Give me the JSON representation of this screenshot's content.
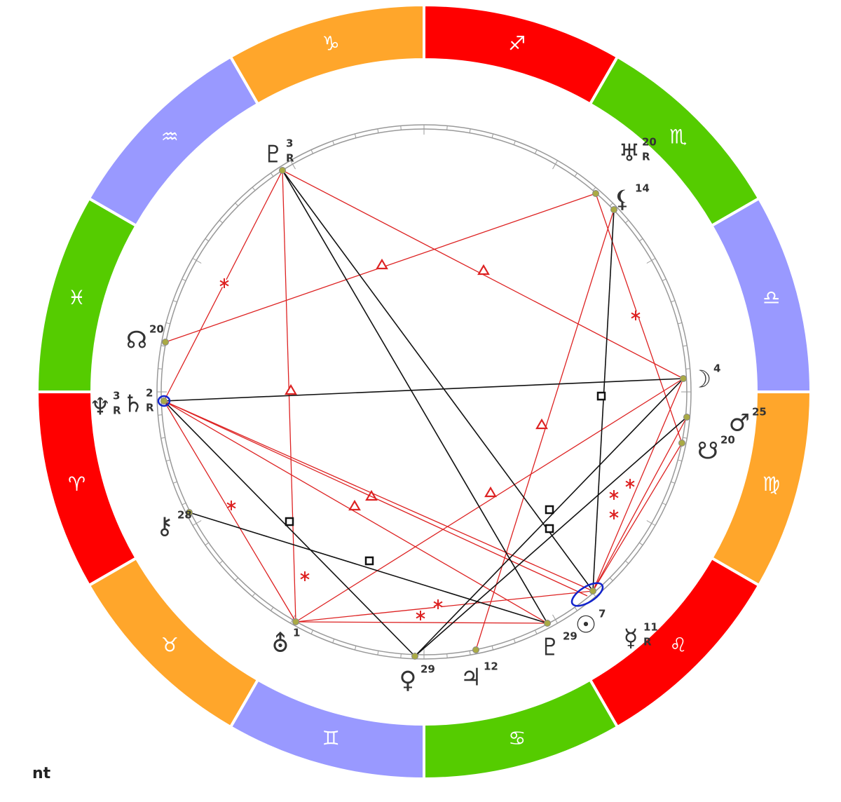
{
  "title": "nt",
  "zodiac": [
    {
      "symbol": "♐",
      "color": "#ff0000"
    },
    {
      "symbol": "♏",
      "color": "#55cc00"
    },
    {
      "symbol": "♎",
      "color": "#9999ff"
    },
    {
      "symbol": "♍",
      "color": "#ffa62b"
    },
    {
      "symbol": "♌",
      "color": "#ff0000"
    },
    {
      "symbol": "♋",
      "color": "#55cc00"
    },
    {
      "symbol": "♊",
      "color": "#9999ff"
    },
    {
      "symbol": "♉",
      "color": "#ffa62b"
    },
    {
      "symbol": "♈",
      "color": "#ff0000"
    },
    {
      "symbol": "♓",
      "color": "#55cc00"
    },
    {
      "symbol": "♒",
      "color": "#9999ff"
    },
    {
      "symbol": "♑",
      "color": "#ffa62b"
    }
  ],
  "planets": [
    {
      "symbol": "♇",
      "degree": 3,
      "retrograde": "R"
    },
    {
      "symbol": "♅",
      "degree": 20,
      "retrograde": "R"
    },
    {
      "symbol": "⚸",
      "degree": 14
    },
    {
      "symbol": "☊",
      "degree": 20
    },
    {
      "symbol": "♆",
      "degree": 3,
      "retrograde": "R"
    },
    {
      "symbol": "♄",
      "degree": 2,
      "retrograde": "R"
    },
    {
      "symbol": "☽",
      "degree": 4
    },
    {
      "symbol": "♂",
      "degree": 25
    },
    {
      "symbol": "☋",
      "degree": 20
    },
    {
      "symbol": "⚷",
      "degree": 28
    },
    {
      "symbol": "⛢",
      "degree": 1
    },
    {
      "symbol": "♀",
      "degree": 29
    },
    {
      "symbol": "♃",
      "degree": 12
    },
    {
      "symbol": "♇",
      "degree": 29
    },
    {
      "symbol": "☉",
      "degree": 7
    },
    {
      "symbol": "☿",
      "degree": 11,
      "retrograde": "R"
    }
  ]
}
